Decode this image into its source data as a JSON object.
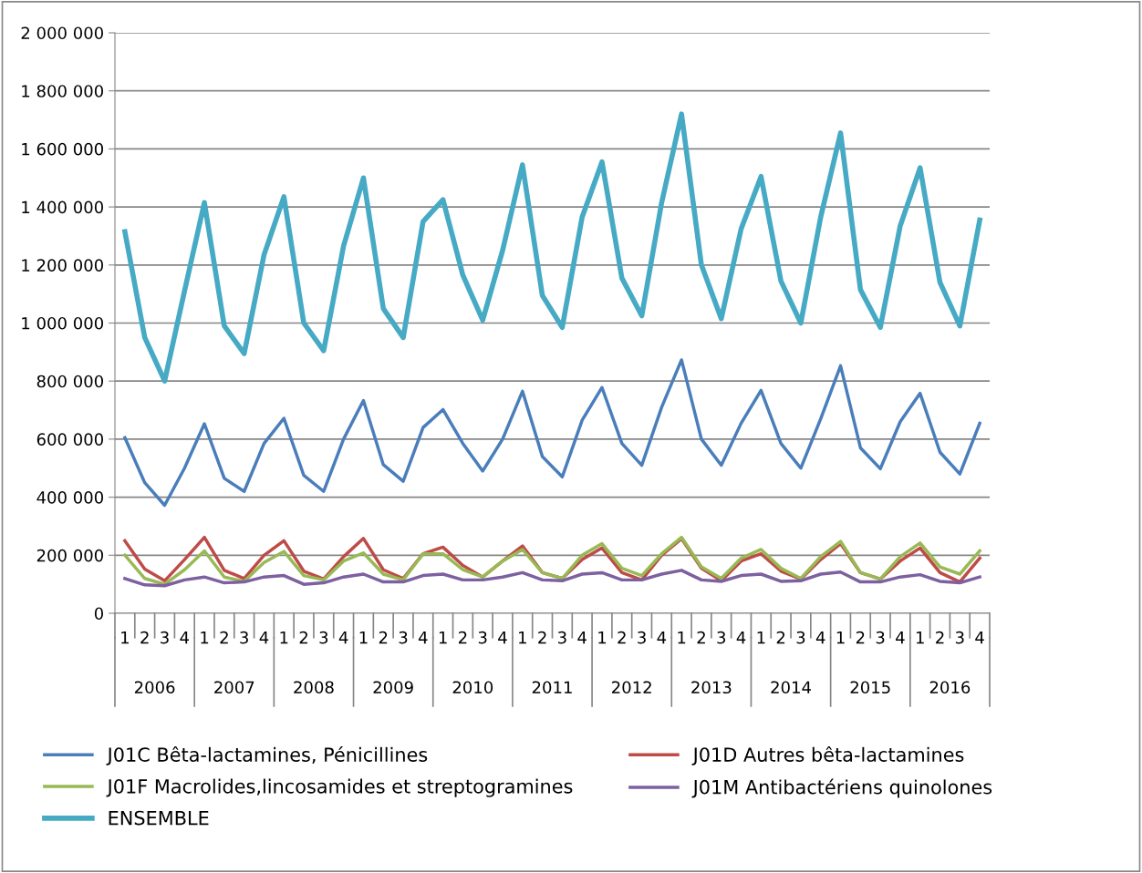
{
  "chart_data": {
    "type": "line",
    "categories": [
      "1",
      "2",
      "3",
      "4",
      "1",
      "2",
      "3",
      "4",
      "1",
      "2",
      "3",
      "4",
      "1",
      "2",
      "3",
      "4",
      "1",
      "2",
      "3",
      "4",
      "1",
      "2",
      "3",
      "4",
      "1",
      "2",
      "3",
      "4",
      "1",
      "2",
      "3",
      "4",
      "1",
      "2",
      "3",
      "4",
      "1",
      "2",
      "3",
      "4",
      "1",
      "2",
      "3",
      "4"
    ],
    "annotations": [
      "2006",
      "2007",
      "2008",
      "2009",
      "2010",
      "2011",
      "2012",
      "2013",
      "2014",
      "2015",
      "2016"
    ],
    "ylim": [
      0,
      2000000
    ],
    "yticks": [
      {
        "value": 0,
        "label": "0"
      },
      {
        "value": 200000,
        "label": "200 000"
      },
      {
        "value": 400000,
        "label": "400 000"
      },
      {
        "value": 600000,
        "label": "600 000"
      },
      {
        "value": 800000,
        "label": "800 000"
      },
      {
        "value": 1000000,
        "label": "1 000 000"
      },
      {
        "value": 1200000,
        "label": "1 200 000"
      },
      {
        "value": 1400000,
        "label": "1 400 000"
      },
      {
        "value": 1600000,
        "label": "1 600 000"
      },
      {
        "value": 1800000,
        "label": "1 800 000"
      },
      {
        "value": 2000000,
        "label": "2 000 000"
      }
    ],
    "grid": "y",
    "legend": "bottom",
    "marker": "none",
    "line_style": "solid",
    "series": [
      {
        "name": "J01C Bêta-lactamines, Pénicillines",
        "color": "#4a7ebb",
        "values": [
          605000,
          450000,
          372000,
          500000,
          653000,
          465000,
          420000,
          585000,
          672000,
          475000,
          420000,
          600000,
          733000,
          512000,
          455000,
          640000,
          702000,
          585000,
          490000,
          600000,
          765000,
          540000,
          470000,
          665000,
          778000,
          585000,
          510000,
          710000,
          873000,
          600000,
          510000,
          655000,
          768000,
          585000,
          500000,
          670000,
          853000,
          570000,
          498000,
          660000,
          758000,
          555000,
          480000,
          655000
        ]
      },
      {
        "name": "J01D Autres bêta-lactamines",
        "color": "#be4b48",
        "values": [
          250000,
          152000,
          112000,
          185000,
          262000,
          148000,
          120000,
          200000,
          250000,
          145000,
          118000,
          195000,
          258000,
          150000,
          120000,
          205000,
          228000,
          165000,
          125000,
          180000,
          232000,
          140000,
          120000,
          185000,
          225000,
          140000,
          115000,
          200000,
          257000,
          155000,
          112000,
          180000,
          205000,
          145000,
          118000,
          185000,
          240000,
          140000,
          118000,
          180000,
          225000,
          140000,
          108000,
          190000
        ]
      },
      {
        "name": "J01F Macrolides,lincosamides et streptogramines",
        "color": "#98b954",
        "values": [
          200000,
          120000,
          100000,
          150000,
          215000,
          125000,
          110000,
          175000,
          213000,
          130000,
          115000,
          180000,
          208000,
          135000,
          115000,
          205000,
          205000,
          150000,
          125000,
          180000,
          220000,
          140000,
          120000,
          200000,
          240000,
          155000,
          130000,
          205000,
          262000,
          160000,
          120000,
          190000,
          220000,
          155000,
          120000,
          195000,
          248000,
          140000,
          118000,
          195000,
          242000,
          160000,
          135000,
          215000
        ]
      },
      {
        "name": "J01M Antibactériens quinolones",
        "color": "#7d60a0",
        "values": [
          120000,
          98000,
          95000,
          115000,
          125000,
          105000,
          108000,
          125000,
          130000,
          100000,
          105000,
          125000,
          135000,
          108000,
          108000,
          130000,
          135000,
          115000,
          115000,
          125000,
          140000,
          115000,
          112000,
          135000,
          140000,
          115000,
          115000,
          135000,
          148000,
          115000,
          110000,
          130000,
          135000,
          110000,
          112000,
          135000,
          142000,
          108000,
          108000,
          125000,
          133000,
          110000,
          105000,
          125000
        ]
      },
      {
        "name": "ENSEMBLE",
        "color": "#46aac5",
        "values": [
          1315000,
          950000,
          800000,
          1110000,
          1415000,
          990000,
          895000,
          1235000,
          1435000,
          1000000,
          905000,
          1265000,
          1500000,
          1050000,
          950000,
          1350000,
          1425000,
          1165000,
          1010000,
          1250000,
          1545000,
          1095000,
          985000,
          1365000,
          1555000,
          1155000,
          1025000,
          1415000,
          1720000,
          1200000,
          1015000,
          1325000,
          1505000,
          1145000,
          1000000,
          1365000,
          1655000,
          1115000,
          985000,
          1335000,
          1535000,
          1140000,
          990000,
          1355000
        ]
      }
    ]
  }
}
